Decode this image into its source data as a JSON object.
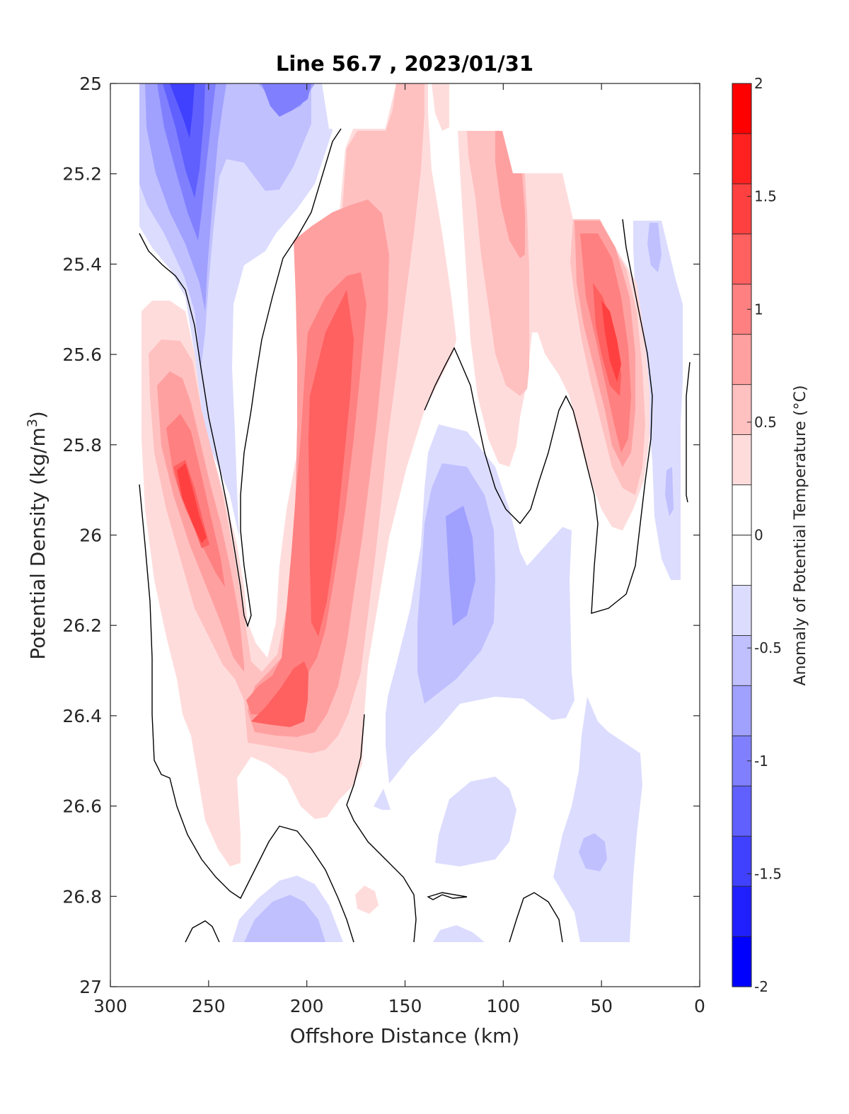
{
  "chart_data": {
    "type": "heatmap",
    "subtype": "filled-contour",
    "title": "Line 56.7 , 2023/01/31",
    "xlabel": "Offshore Distance (km)",
    "ylabel": "Potential Density (kg/m",
    "ylabel_sup": "3",
    "ylabel_end": ")",
    "xlim": [
      300,
      0
    ],
    "ylim": [
      25,
      27
    ],
    "x_reversed": true,
    "y_reversed": true,
    "xticks": [
      300,
      250,
      200,
      150,
      100,
      50,
      0
    ],
    "xtick_labels": [
      "300",
      "250",
      "200",
      "150",
      "100",
      "50",
      "0"
    ],
    "yticks": [
      25,
      25.2,
      25.4,
      25.6,
      25.8,
      26,
      26.2,
      26.4,
      26.6,
      26.8,
      27
    ],
    "ytick_labels": [
      "25",
      "25.2",
      "25.4",
      "25.6",
      "25.8",
      "26",
      "26.2",
      "26.4",
      "26.6",
      "26.8",
      "27"
    ],
    "colorbar": {
      "label": "Anomaly of Potential Temperature (°C)",
      "range": [
        -2,
        2
      ],
      "step": 0.25,
      "ticks": [
        2,
        1.5,
        1,
        0.5,
        0,
        -0.5,
        -1,
        -1.5,
        -2
      ],
      "tick_labels": [
        "2",
        "1.5",
        "1",
        "0.5",
        "0",
        "-0.5",
        "-1",
        "-1.5",
        "-2"
      ],
      "colors_top_to_bottom": [
        "#ff0000",
        "#ff2020",
        "#ff4040",
        "#ff6060",
        "#ff8080",
        "#ffa0a0",
        "#ffc0c0",
        "#ffdcdc",
        "#ffffff",
        "#ffffff",
        "#dcdcff",
        "#c0c0ff",
        "#a0a0ff",
        "#8080ff",
        "#6060ff",
        "#4040ff",
        "#2020ff",
        "#0000ff"
      ]
    },
    "features": [
      {
        "kind": "warm-core",
        "max_anomaly": 1.25,
        "x_km": 265,
        "sigma": 25.95
      },
      {
        "kind": "warm-core",
        "max_anomaly": 1.0,
        "x_km": 185,
        "sigma": 25.9
      },
      {
        "kind": "warm-core",
        "max_anomaly": 1.0,
        "x_km": 205,
        "sigma": 26.38
      },
      {
        "kind": "warm-core",
        "max_anomaly": 1.25,
        "x_km": 45,
        "sigma": 25.6
      },
      {
        "kind": "warm-core",
        "max_anomaly": 0.75,
        "x_km": 98,
        "sigma": 25.35
      },
      {
        "kind": "cold-core",
        "max_anomaly": -1.5,
        "x_km": 262,
        "sigma": 25.1
      },
      {
        "kind": "cold-core",
        "max_anomaly": -1.0,
        "x_km": 205,
        "sigma": 25.05
      },
      {
        "kind": "cold-core",
        "max_anomaly": -1.0,
        "x_km": 125,
        "sigma": 26.1
      },
      {
        "kind": "cold-core",
        "max_anomaly": -0.75,
        "x_km": 205,
        "sigma": 26.87
      },
      {
        "kind": "cold-core",
        "max_anomaly": -0.75,
        "x_km": 55,
        "sigma": 26.73
      },
      {
        "kind": "cold-core",
        "max_anomaly": -0.5,
        "x_km": 17,
        "sigma": 25.45
      }
    ],
    "grid": false,
    "legend": "colorbar-right"
  }
}
